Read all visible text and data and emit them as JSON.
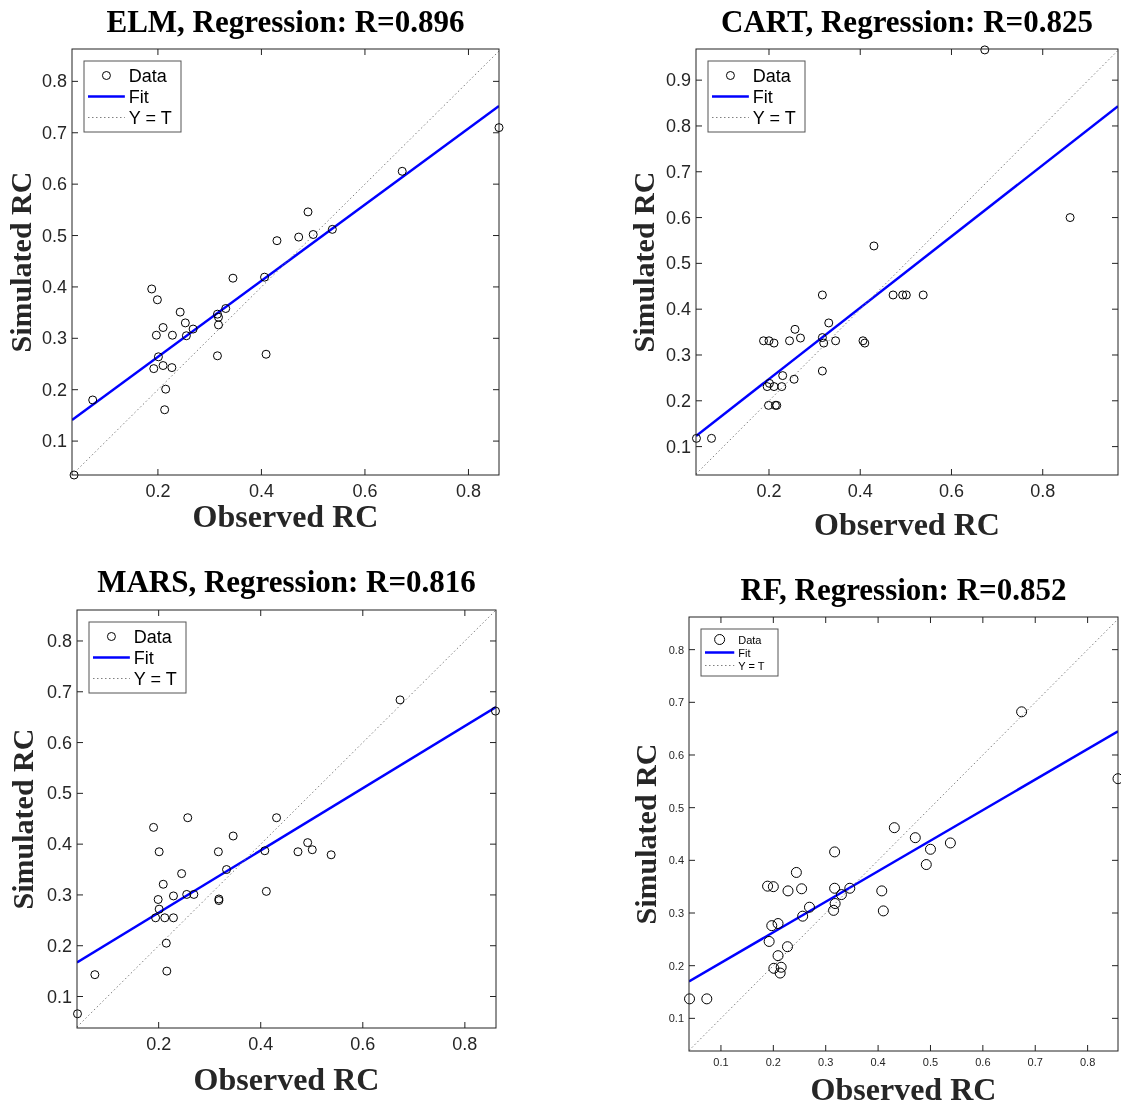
{
  "chart_data": [
    {
      "type": "scatter",
      "title": "ELM, Regression: R=0.896",
      "xlabel": "Observed RC",
      "ylabel": "Simulated RC",
      "xlim": [
        0.034,
        0.859
      ],
      "ylim": [
        0.034,
        0.863
      ],
      "xticks": [
        0.2,
        0.4,
        0.6,
        0.8
      ],
      "yticks": [
        0.1,
        0.2,
        0.3,
        0.4,
        0.5,
        0.6,
        0.7,
        0.8
      ],
      "legend": "top left",
      "series": [
        {
          "name": "Data",
          "type": "scatter",
          "marker": "circle",
          "color": "#000000",
          "x": [
            0.038,
            0.074,
            0.672,
            0.859,
            0.49,
            0.472,
            0.5,
            0.537,
            0.43,
            0.345,
            0.406,
            0.188,
            0.199,
            0.243,
            0.315,
            0.317,
            0.331,
            0.253,
            0.21,
            0.268,
            0.197,
            0.228,
            0.255,
            0.317,
            0.315,
            0.409,
            0.201,
            0.192,
            0.21,
            0.227,
            0.215,
            0.213
          ],
          "values": [
            0.034,
            0.18,
            0.625,
            0.71,
            0.546,
            0.497,
            0.502,
            0.512,
            0.49,
            0.417,
            0.419,
            0.396,
            0.375,
            0.351,
            0.347,
            0.341,
            0.358,
            0.33,
            0.321,
            0.318,
            0.306,
            0.306,
            0.305,
            0.326,
            0.266,
            0.269,
            0.264,
            0.241,
            0.247,
            0.243,
            0.201,
            0.161
          ]
        },
        {
          "name": "Fit",
          "type": "line",
          "color": "#0000ff",
          "line_style": "solid",
          "x": [
            0.034,
            0.859
          ],
          "values": [
            0.141,
            0.752
          ]
        },
        {
          "name": "Y = T",
          "type": "line",
          "color": "#808080",
          "line_style": "dotted",
          "x": [
            0.034,
            0.859
          ],
          "values": [
            0.034,
            0.859
          ]
        }
      ]
    },
    {
      "type": "scatter",
      "title": "CART, Regression: R=0.825",
      "xlabel": "Observed RC",
      "ylabel": "Simulated RC",
      "xlim": [
        0.04,
        0.965
      ],
      "ylim": [
        0.038,
        0.968
      ],
      "xticks": [
        0.2,
        0.4,
        0.6,
        0.8
      ],
      "yticks": [
        0.1,
        0.2,
        0.3,
        0.4,
        0.5,
        0.6,
        0.7,
        0.8,
        0.9
      ],
      "legend": "top left",
      "series": [
        {
          "name": "Data",
          "type": "scatter",
          "marker": "circle",
          "color": "#000000",
          "x": [
            0.673,
            0.86,
            0.43,
            0.317,
            0.472,
            0.493,
            0.501,
            0.538,
            0.331,
            0.257,
            0.269,
            0.317,
            0.188,
            0.2,
            0.211,
            0.245,
            0.346,
            0.32,
            0.406,
            0.41,
            0.317,
            0.23,
            0.255,
            0.201,
            0.196,
            0.211,
            0.228,
            0.199,
            0.214,
            0.217,
            0.041,
            0.074
          ],
          "values": [
            0.966,
            0.6,
            0.538,
            0.431,
            0.431,
            0.431,
            0.431,
            0.431,
            0.37,
            0.356,
            0.337,
            0.338,
            0.331,
            0.331,
            0.326,
            0.331,
            0.331,
            0.326,
            0.331,
            0.326,
            0.265,
            0.255,
            0.247,
            0.238,
            0.231,
            0.231,
            0.231,
            0.19,
            0.19,
            0.19,
            0.118,
            0.118
          ]
        },
        {
          "name": "Fit",
          "type": "line",
          "color": "#0000ff",
          "line_style": "solid",
          "x": [
            0.04,
            0.965
          ],
          "values": [
            0.123,
            0.843
          ]
        },
        {
          "name": "Y = T",
          "type": "line",
          "color": "#808080",
          "line_style": "dotted",
          "x": [
            0.04,
            0.965
          ],
          "values": [
            0.04,
            0.965
          ]
        }
      ]
    },
    {
      "type": "scatter",
      "title": "MARS, Regression: R=0.816",
      "xlabel": "Observed RC",
      "ylabel": "Simulated RC",
      "xlim": [
        0.04,
        0.861
      ],
      "ylim": [
        0.038,
        0.861
      ],
      "xticks": [
        0.2,
        0.4,
        0.6,
        0.8
      ],
      "yticks": [
        0.1,
        0.2,
        0.3,
        0.4,
        0.5,
        0.6,
        0.7,
        0.8
      ],
      "legend": "top left",
      "series": [
        {
          "name": "Data",
          "type": "scatter",
          "marker": "circle",
          "color": "#000000",
          "x": [
            0.041,
            0.075,
            0.673,
            0.86,
            0.19,
            0.257,
            0.431,
            0.346,
            0.201,
            0.317,
            0.408,
            0.473,
            0.492,
            0.501,
            0.538,
            0.333,
            0.245,
            0.209,
            0.199,
            0.229,
            0.255,
            0.269,
            0.318,
            0.318,
            0.411,
            0.201,
            0.194,
            0.212,
            0.229,
            0.215,
            0.216
          ],
          "values": [
            0.066,
            0.143,
            0.684,
            0.662,
            0.433,
            0.452,
            0.452,
            0.416,
            0.385,
            0.385,
            0.387,
            0.385,
            0.403,
            0.389,
            0.379,
            0.35,
            0.342,
            0.321,
            0.291,
            0.298,
            0.301,
            0.301,
            0.292,
            0.289,
            0.307,
            0.272,
            0.255,
            0.255,
            0.255,
            0.205,
            0.15
          ]
        },
        {
          "name": "Fit",
          "type": "line",
          "color": "#0000ff",
          "line_style": "solid",
          "x": [
            0.04,
            0.861
          ],
          "values": [
            0.167,
            0.67
          ]
        },
        {
          "name": "Y = T",
          "type": "line",
          "color": "#808080",
          "line_style": "dotted",
          "x": [
            0.04,
            0.861
          ],
          "values": [
            0.04,
            0.861
          ]
        }
      ]
    },
    {
      "type": "scatter",
      "title": "RF, Regression: R=0.852",
      "xlabel": "Observed RC",
      "ylabel": "Simulated RC",
      "xlim": [
        0.039,
        0.858
      ],
      "ylim": [
        0.038,
        0.862
      ],
      "xticks": [
        0.1,
        0.2,
        0.3,
        0.4,
        0.5,
        0.6,
        0.7,
        0.8
      ],
      "yticks": [
        0.1,
        0.2,
        0.3,
        0.4,
        0.5,
        0.6,
        0.7,
        0.8
      ],
      "legend": "top left",
      "series": [
        {
          "name": "Data",
          "type": "scatter",
          "marker": "circle",
          "color": "#000000",
          "x": [
            0.04,
            0.073,
            0.674,
            0.858,
            0.431,
            0.471,
            0.5,
            0.538,
            0.492,
            0.317,
            0.244,
            0.189,
            0.2,
            0.228,
            0.254,
            0.317,
            0.346,
            0.33,
            0.407,
            0.41,
            0.269,
            0.318,
            0.315,
            0.256,
            0.197,
            0.209,
            0.192,
            0.227,
            0.209,
            0.201,
            0.215,
            0.213
          ],
          "values": [
            0.137,
            0.137,
            0.682,
            0.555,
            0.462,
            0.443,
            0.421,
            0.433,
            0.392,
            0.416,
            0.377,
            0.351,
            0.35,
            0.342,
            0.346,
            0.347,
            0.347,
            0.335,
            0.342,
            0.304,
            0.311,
            0.318,
            0.305,
            0.294,
            0.276,
            0.28,
            0.246,
            0.236,
            0.219,
            0.195,
            0.197,
            0.186
          ]
        },
        {
          "name": "Fit",
          "type": "line",
          "color": "#0000ff",
          "line_style": "solid",
          "x": [
            0.039,
            0.858
          ],
          "values": [
            0.17,
            0.645
          ]
        },
        {
          "name": "Y = T",
          "type": "line",
          "color": "#808080",
          "line_style": "dotted",
          "x": [
            0.039,
            0.858
          ],
          "values": [
            0.039,
            0.858
          ]
        }
      ]
    }
  ]
}
